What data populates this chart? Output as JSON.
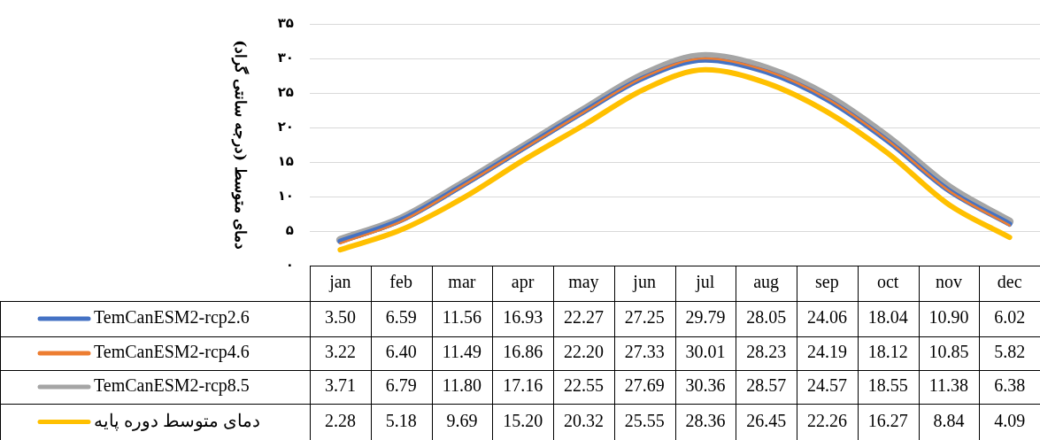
{
  "chart_data": {
    "type": "line",
    "ylabel": "دمای متوسط (درجه سانتی گراد)",
    "categories": [
      "jan",
      "feb",
      "mar",
      "apr",
      "may",
      "jun",
      "jul",
      "aug",
      "sep",
      "oct",
      "nov",
      "dec"
    ],
    "ylim": [
      0,
      35
    ],
    "yticks": [
      {
        "value": 0,
        "label": "۰"
      },
      {
        "value": 5,
        "label": "۵"
      },
      {
        "value": 10,
        "label": "۱۰"
      },
      {
        "value": 15,
        "label": "۱۵"
      },
      {
        "value": 20,
        "label": "۲۰"
      },
      {
        "value": 25,
        "label": "۲۵"
      },
      {
        "value": 30,
        "label": "۳۰"
      },
      {
        "value": 35,
        "label": "۳۵"
      }
    ],
    "grid": "y",
    "legend": "bottom",
    "marker": "none",
    "line_style": "solid",
    "series": [
      {
        "name": "TemCanESM2-rcp2.6",
        "color": "#4472c4",
        "values": [
          3.5,
          6.59,
          11.56,
          16.93,
          22.27,
          27.25,
          29.79,
          28.05,
          24.06,
          18.04,
          10.9,
          6.02
        ],
        "value_labels": [
          "3.50",
          "6.59",
          "11.56",
          "16.93",
          "22.27",
          "27.25",
          "29.79",
          "28.05",
          "24.06",
          "18.04",
          "10.90",
          "6.02"
        ]
      },
      {
        "name": "TemCanESM2-rcp4.6",
        "color": "#ed7d31",
        "values": [
          3.22,
          6.4,
          11.49,
          16.86,
          22.2,
          27.33,
          30.01,
          28.23,
          24.19,
          18.12,
          10.85,
          5.82
        ],
        "value_labels": [
          "3.22",
          "6.40",
          "11.49",
          "16.86",
          "22.20",
          "27.33",
          "30.01",
          "28.23",
          "24.19",
          "18.12",
          "10.85",
          "5.82"
        ]
      },
      {
        "name": "TemCanESM2-rcp8.5",
        "color": "#a5a5a5",
        "values": [
          3.71,
          6.79,
          11.8,
          17.16,
          22.55,
          27.69,
          30.36,
          28.57,
          24.57,
          18.55,
          11.38,
          6.38
        ],
        "value_labels": [
          "3.71",
          "6.79",
          "11.80",
          "17.16",
          "22.55",
          "27.69",
          "30.36",
          "28.57",
          "24.57",
          "18.55",
          "11.38",
          "6.38"
        ]
      },
      {
        "name": "دمای متوسط دوره پایه",
        "color": "#ffc000",
        "values": [
          2.28,
          5.18,
          9.69,
          15.2,
          20.32,
          25.55,
          28.36,
          26.45,
          22.26,
          16.27,
          8.84,
          4.09
        ],
        "value_labels": [
          "2.28",
          "5.18",
          "9.69",
          "15.20",
          "20.32",
          "25.55",
          "28.36",
          "26.45",
          "22.26",
          "16.27",
          "8.84",
          "4.09"
        ]
      }
    ]
  }
}
